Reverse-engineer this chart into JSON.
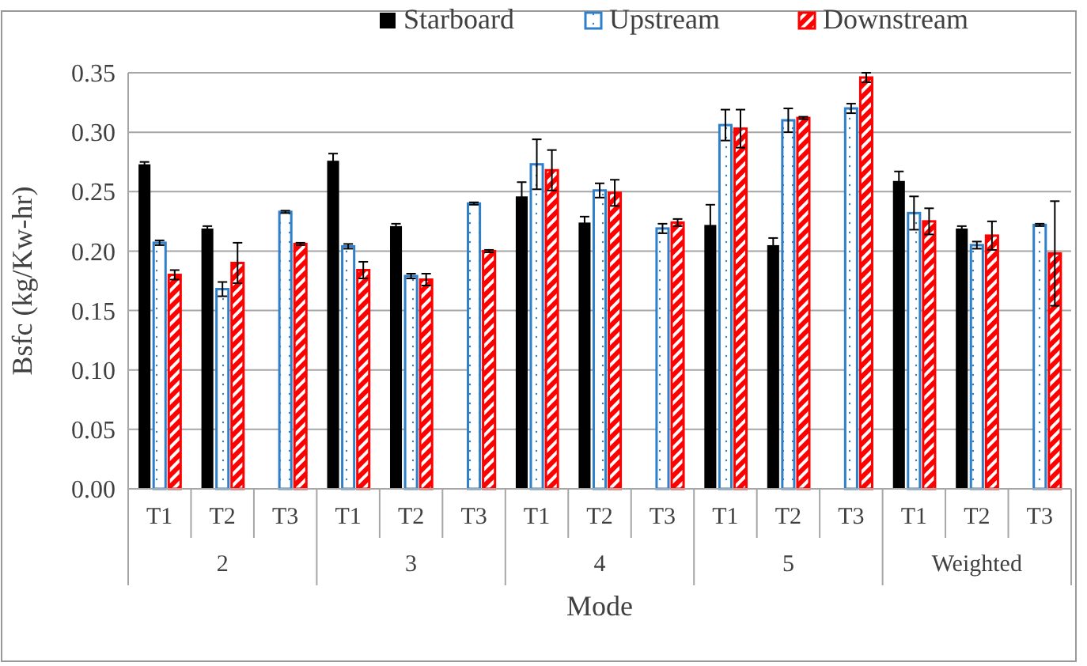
{
  "chart_data": {
    "type": "bar",
    "xlabel": "Mode",
    "ylabel": "Bsfc (kg/Kw-hr)",
    "categories": [
      "T1",
      "T2",
      "T3",
      "T1",
      "T2",
      "T3",
      "T1",
      "T2",
      "T3",
      "T1",
      "T2",
      "T3",
      "T1",
      "T2",
      "T3"
    ],
    "annotations": [
      "2",
      "3",
      "4",
      "5",
      "Weighted"
    ],
    "series": [
      {
        "name": "Starboard",
        "color": "#000000",
        "values": [
          0.273,
          0.219,
          null,
          0.276,
          0.221,
          null,
          0.246,
          0.224,
          null,
          0.222,
          0.205,
          null,
          0.259,
          0.219,
          null
        ],
        "errors": [
          0.002,
          0.002,
          null,
          0.006,
          0.002,
          null,
          0.012,
          0.005,
          null,
          0.017,
          0.006,
          null,
          0.008,
          0.002,
          null
        ]
      },
      {
        "name": "Upstream",
        "color": "#2f7fc9",
        "values": [
          0.207,
          0.168,
          0.233,
          0.204,
          0.179,
          0.24,
          0.273,
          0.251,
          0.219,
          0.306,
          0.31,
          0.32,
          0.232,
          0.205,
          0.222
        ],
        "errors": [
          0.002,
          0.006,
          0.001,
          0.002,
          0.002,
          0.001,
          0.021,
          0.006,
          0.004,
          0.013,
          0.01,
          0.004,
          0.014,
          0.003,
          0.001
        ]
      },
      {
        "name": "Downstream",
        "color": "#ff0000",
        "values": [
          0.18,
          0.19,
          0.206,
          0.184,
          0.176,
          0.2,
          0.268,
          0.249,
          0.224,
          0.303,
          0.312,
          0.346,
          0.225,
          0.213,
          0.198
        ],
        "errors": [
          0.004,
          0.017,
          0.001,
          0.007,
          0.005,
          0.001,
          0.017,
          0.011,
          0.003,
          0.016,
          0.001,
          0.004,
          0.011,
          0.012,
          0.044
        ]
      }
    ],
    "ylim": [
      0,
      0.35
    ],
    "yticks": [
      {
        "value": 0,
        "label": "0.00"
      },
      {
        "value": 0.05,
        "label": "0.05"
      },
      {
        "value": 0.1,
        "label": "0.10"
      },
      {
        "value": 0.15,
        "label": "0.15"
      },
      {
        "value": 0.2,
        "label": "0.20"
      },
      {
        "value": 0.25,
        "label": "0.25"
      },
      {
        "value": 0.3,
        "label": "0.30"
      },
      {
        "value": 0.35,
        "label": "0.35"
      }
    ],
    "grid": "y",
    "legend": "top"
  }
}
